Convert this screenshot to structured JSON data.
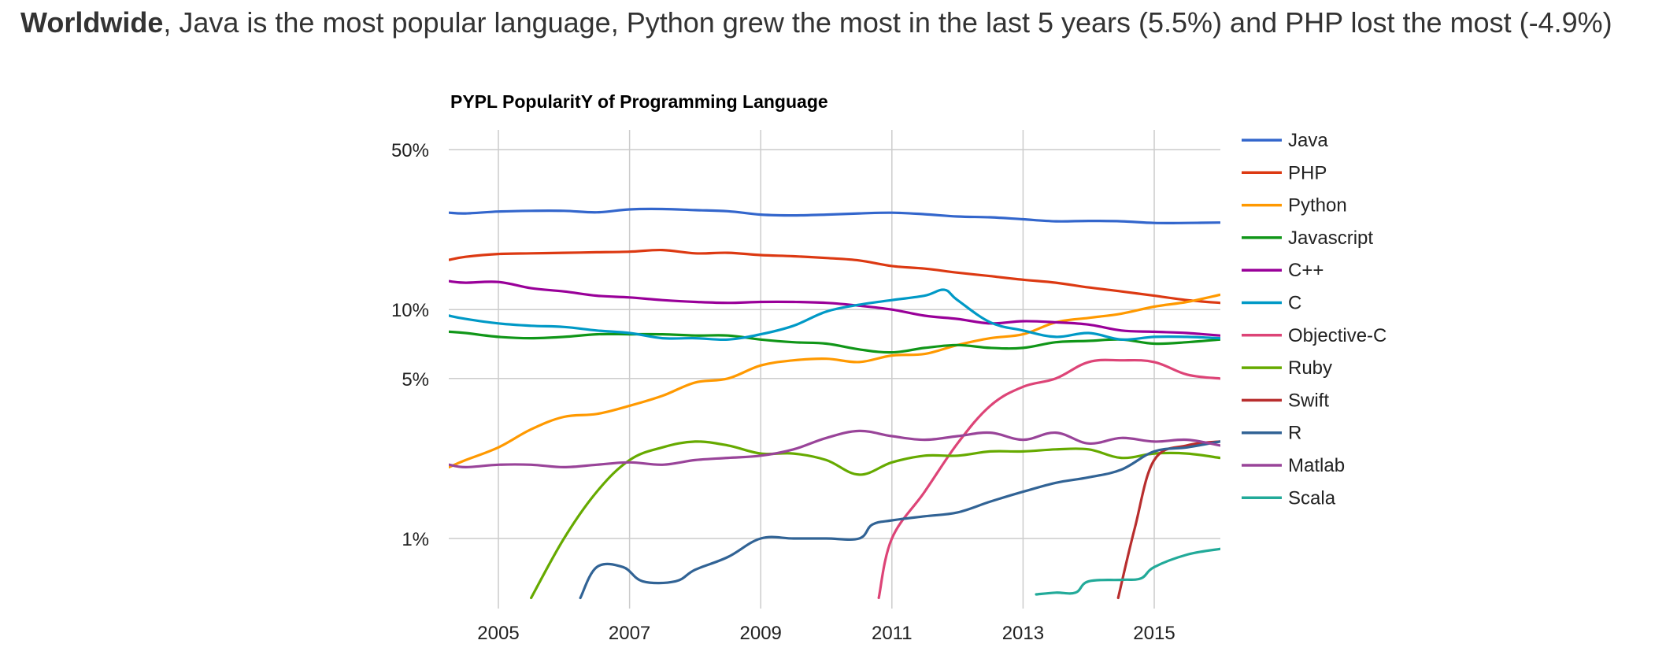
{
  "headline": {
    "bold": "Worldwide",
    "rest": ", Java is the most popular language, Python grew the most in the last 5 years (5.5%) and PHP lost the most (-4.9%)"
  },
  "chart_data": {
    "type": "line",
    "title": "PYPL PopularitY of Programming Language",
    "xlabel": "",
    "ylabel": "",
    "y_scale": "log",
    "xlim": [
      2004.25,
      2016.0
    ],
    "ylim": [
      0.55,
      50
    ],
    "x_ticks": [
      2005,
      2007,
      2009,
      2011,
      2013,
      2015
    ],
    "x_tick_labels": [
      "2005",
      "2007",
      "2009",
      "2011",
      "2013",
      "2015"
    ],
    "y_ticks": [
      50,
      10,
      5,
      1
    ],
    "y_tick_labels": [
      "50%",
      "10%",
      "5%",
      "1%"
    ],
    "grid": true,
    "legend_position": "right",
    "series": [
      {
        "name": "Java",
        "color": "#3366cc",
        "points": [
          [
            2004.25,
            26.5
          ],
          [
            2004.5,
            26.3
          ],
          [
            2005,
            26.8
          ],
          [
            2005.5,
            27.0
          ],
          [
            2006,
            27.0
          ],
          [
            2006.5,
            26.6
          ],
          [
            2007,
            27.4
          ],
          [
            2007.5,
            27.5
          ],
          [
            2008,
            27.2
          ],
          [
            2008.5,
            26.9
          ],
          [
            2009,
            26.0
          ],
          [
            2009.5,
            25.8
          ],
          [
            2010,
            26.0
          ],
          [
            2010.5,
            26.3
          ],
          [
            2011,
            26.5
          ],
          [
            2011.5,
            26.1
          ],
          [
            2012,
            25.5
          ],
          [
            2012.5,
            25.3
          ],
          [
            2013,
            24.8
          ],
          [
            2013.5,
            24.3
          ],
          [
            2014,
            24.4
          ],
          [
            2014.5,
            24.3
          ],
          [
            2015,
            23.9
          ],
          [
            2015.5,
            23.9
          ],
          [
            2016,
            24.0
          ]
        ]
      },
      {
        "name": "PHP",
        "color": "#dc3912",
        "points": [
          [
            2004.25,
            16.5
          ],
          [
            2004.5,
            17.0
          ],
          [
            2005,
            17.5
          ],
          [
            2005.5,
            17.6
          ],
          [
            2006,
            17.7
          ],
          [
            2006.5,
            17.8
          ],
          [
            2007,
            17.9
          ],
          [
            2007.5,
            18.2
          ],
          [
            2008,
            17.6
          ],
          [
            2008.5,
            17.7
          ],
          [
            2009,
            17.3
          ],
          [
            2009.5,
            17.1
          ],
          [
            2010,
            16.8
          ],
          [
            2010.5,
            16.4
          ],
          [
            2011,
            15.5
          ],
          [
            2011.5,
            15.1
          ],
          [
            2012,
            14.5
          ],
          [
            2012.5,
            14.0
          ],
          [
            2013,
            13.5
          ],
          [
            2013.5,
            13.1
          ],
          [
            2014,
            12.5
          ],
          [
            2014.5,
            12.0
          ],
          [
            2015,
            11.5
          ],
          [
            2015.5,
            11.0
          ],
          [
            2016,
            10.7
          ]
        ]
      },
      {
        "name": "Python",
        "color": "#ff9900",
        "points": [
          [
            2004.25,
            2.05
          ],
          [
            2004.5,
            2.2
          ],
          [
            2005,
            2.5
          ],
          [
            2005.5,
            3.0
          ],
          [
            2006,
            3.4
          ],
          [
            2006.5,
            3.5
          ],
          [
            2007,
            3.8
          ],
          [
            2007.5,
            4.2
          ],
          [
            2008,
            4.8
          ],
          [
            2008.5,
            5.0
          ],
          [
            2009,
            5.7
          ],
          [
            2009.5,
            6.0
          ],
          [
            2010,
            6.1
          ],
          [
            2010.5,
            5.9
          ],
          [
            2011,
            6.3
          ],
          [
            2011.5,
            6.4
          ],
          [
            2012,
            7.0
          ],
          [
            2012.5,
            7.5
          ],
          [
            2013,
            7.8
          ],
          [
            2013.5,
            8.8
          ],
          [
            2014,
            9.2
          ],
          [
            2014.5,
            9.6
          ],
          [
            2015,
            10.3
          ],
          [
            2015.5,
            10.8
          ],
          [
            2016,
            11.6
          ]
        ]
      },
      {
        "name": "Javascript",
        "color": "#109618",
        "points": [
          [
            2004.25,
            8.0
          ],
          [
            2004.5,
            7.9
          ],
          [
            2005,
            7.6
          ],
          [
            2005.5,
            7.5
          ],
          [
            2006,
            7.6
          ],
          [
            2006.5,
            7.8
          ],
          [
            2007,
            7.8
          ],
          [
            2007.5,
            7.8
          ],
          [
            2008,
            7.7
          ],
          [
            2008.5,
            7.7
          ],
          [
            2009,
            7.4
          ],
          [
            2009.5,
            7.2
          ],
          [
            2010,
            7.1
          ],
          [
            2010.5,
            6.7
          ],
          [
            2011,
            6.5
          ],
          [
            2011.5,
            6.8
          ],
          [
            2012,
            7.0
          ],
          [
            2012.5,
            6.8
          ],
          [
            2013,
            6.8
          ],
          [
            2013.5,
            7.2
          ],
          [
            2014,
            7.3
          ],
          [
            2014.5,
            7.4
          ],
          [
            2015,
            7.1
          ],
          [
            2015.5,
            7.2
          ],
          [
            2016,
            7.4
          ]
        ]
      },
      {
        "name": "C++",
        "color": "#990099",
        "points": [
          [
            2004.25,
            13.3
          ],
          [
            2004.5,
            13.1
          ],
          [
            2005,
            13.2
          ],
          [
            2005.5,
            12.4
          ],
          [
            2006,
            12.0
          ],
          [
            2006.5,
            11.5
          ],
          [
            2007,
            11.3
          ],
          [
            2007.5,
            11.0
          ],
          [
            2008,
            10.8
          ],
          [
            2008.5,
            10.7
          ],
          [
            2009,
            10.8
          ],
          [
            2009.5,
            10.8
          ],
          [
            2010,
            10.7
          ],
          [
            2010.5,
            10.4
          ],
          [
            2011,
            10.0
          ],
          [
            2011.5,
            9.4
          ],
          [
            2012,
            9.1
          ],
          [
            2012.5,
            8.7
          ],
          [
            2013,
            8.9
          ],
          [
            2013.5,
            8.8
          ],
          [
            2014,
            8.6
          ],
          [
            2014.5,
            8.1
          ],
          [
            2015,
            8.0
          ],
          [
            2015.5,
            7.9
          ],
          [
            2016,
            7.7
          ]
        ]
      },
      {
        "name": "C",
        "color": "#0099c6",
        "points": [
          [
            2004.25,
            9.4
          ],
          [
            2004.5,
            9.1
          ],
          [
            2005,
            8.7
          ],
          [
            2005.5,
            8.5
          ],
          [
            2006,
            8.4
          ],
          [
            2006.5,
            8.1
          ],
          [
            2007,
            7.9
          ],
          [
            2007.5,
            7.5
          ],
          [
            2008,
            7.5
          ],
          [
            2008.5,
            7.4
          ],
          [
            2009,
            7.8
          ],
          [
            2009.5,
            8.5
          ],
          [
            2010,
            9.8
          ],
          [
            2010.5,
            10.5
          ],
          [
            2011,
            11.0
          ],
          [
            2011.5,
            11.5
          ],
          [
            2011.8,
            12.2
          ],
          [
            2012,
            11.0
          ],
          [
            2012.5,
            8.8
          ],
          [
            2013,
            8.1
          ],
          [
            2013.5,
            7.6
          ],
          [
            2014,
            7.9
          ],
          [
            2014.5,
            7.4
          ],
          [
            2015,
            7.6
          ],
          [
            2015.5,
            7.6
          ],
          [
            2016,
            7.5
          ]
        ]
      },
      {
        "name": "Objective-C",
        "color": "#dd4477",
        "points": [
          [
            2010.8,
            0.55
          ],
          [
            2011,
            1.0
          ],
          [
            2011.5,
            1.6
          ],
          [
            2012,
            2.6
          ],
          [
            2012.5,
            3.8
          ],
          [
            2013,
            4.6
          ],
          [
            2013.5,
            5.0
          ],
          [
            2014,
            5.9
          ],
          [
            2014.5,
            6.0
          ],
          [
            2015,
            5.9
          ],
          [
            2015.5,
            5.2
          ],
          [
            2016,
            5.0
          ]
        ]
      },
      {
        "name": "Ruby",
        "color": "#66aa00",
        "points": [
          [
            2005.5,
            0.55
          ],
          [
            2006,
            1.0
          ],
          [
            2006.5,
            1.6
          ],
          [
            2007,
            2.2
          ],
          [
            2007.5,
            2.5
          ],
          [
            2008,
            2.65
          ],
          [
            2008.5,
            2.55
          ],
          [
            2009,
            2.35
          ],
          [
            2009.5,
            2.35
          ],
          [
            2010,
            2.2
          ],
          [
            2010.5,
            1.9
          ],
          [
            2011,
            2.15
          ],
          [
            2011.5,
            2.3
          ],
          [
            2012,
            2.3
          ],
          [
            2012.5,
            2.4
          ],
          [
            2013,
            2.4
          ],
          [
            2013.5,
            2.45
          ],
          [
            2014,
            2.45
          ],
          [
            2014.5,
            2.25
          ],
          [
            2015,
            2.35
          ],
          [
            2015.5,
            2.35
          ],
          [
            2016,
            2.25
          ]
        ]
      },
      {
        "name": "Swift",
        "color": "#b82e2e",
        "points": [
          [
            2014.45,
            0.55
          ],
          [
            2014.7,
            1.1
          ],
          [
            2015,
            2.2
          ],
          [
            2015.5,
            2.55
          ],
          [
            2016,
            2.65
          ]
        ]
      },
      {
        "name": "R",
        "color": "#316395",
        "points": [
          [
            2006.25,
            0.55
          ],
          [
            2006.5,
            0.75
          ],
          [
            2006.9,
            0.75
          ],
          [
            2007.2,
            0.65
          ],
          [
            2007.7,
            0.65
          ],
          [
            2008,
            0.73
          ],
          [
            2008.5,
            0.83
          ],
          [
            2009,
            1.0
          ],
          [
            2009.5,
            1.0
          ],
          [
            2010,
            1.0
          ],
          [
            2010.5,
            1.0
          ],
          [
            2010.7,
            1.15
          ],
          [
            2011,
            1.2
          ],
          [
            2011.5,
            1.25
          ],
          [
            2012,
            1.3
          ],
          [
            2012.5,
            1.45
          ],
          [
            2013,
            1.6
          ],
          [
            2013.5,
            1.75
          ],
          [
            2014,
            1.85
          ],
          [
            2014.5,
            2.0
          ],
          [
            2015,
            2.4
          ],
          [
            2015.5,
            2.5
          ],
          [
            2016,
            2.65
          ]
        ]
      },
      {
        "name": "Matlab",
        "color": "#994499",
        "points": [
          [
            2004.25,
            2.1
          ],
          [
            2004.5,
            2.05
          ],
          [
            2005,
            2.1
          ],
          [
            2005.5,
            2.1
          ],
          [
            2006,
            2.05
          ],
          [
            2006.5,
            2.1
          ],
          [
            2007,
            2.15
          ],
          [
            2007.5,
            2.1
          ],
          [
            2008,
            2.2
          ],
          [
            2008.5,
            2.25
          ],
          [
            2009,
            2.3
          ],
          [
            2009.5,
            2.45
          ],
          [
            2010,
            2.75
          ],
          [
            2010.5,
            2.95
          ],
          [
            2011,
            2.8
          ],
          [
            2011.5,
            2.7
          ],
          [
            2012,
            2.8
          ],
          [
            2012.5,
            2.9
          ],
          [
            2013,
            2.7
          ],
          [
            2013.5,
            2.9
          ],
          [
            2014,
            2.6
          ],
          [
            2014.5,
            2.75
          ],
          [
            2015,
            2.65
          ],
          [
            2015.5,
            2.7
          ],
          [
            2016,
            2.55
          ]
        ]
      },
      {
        "name": "Scala",
        "color": "#22aa99",
        "points": [
          [
            2013.2,
            0.57
          ],
          [
            2013.5,
            0.58
          ],
          [
            2013.8,
            0.58
          ],
          [
            2014,
            0.65
          ],
          [
            2014.5,
            0.66
          ],
          [
            2014.8,
            0.67
          ],
          [
            2015,
            0.75
          ],
          [
            2015.5,
            0.85
          ],
          [
            2016,
            0.9
          ]
        ]
      }
    ]
  }
}
